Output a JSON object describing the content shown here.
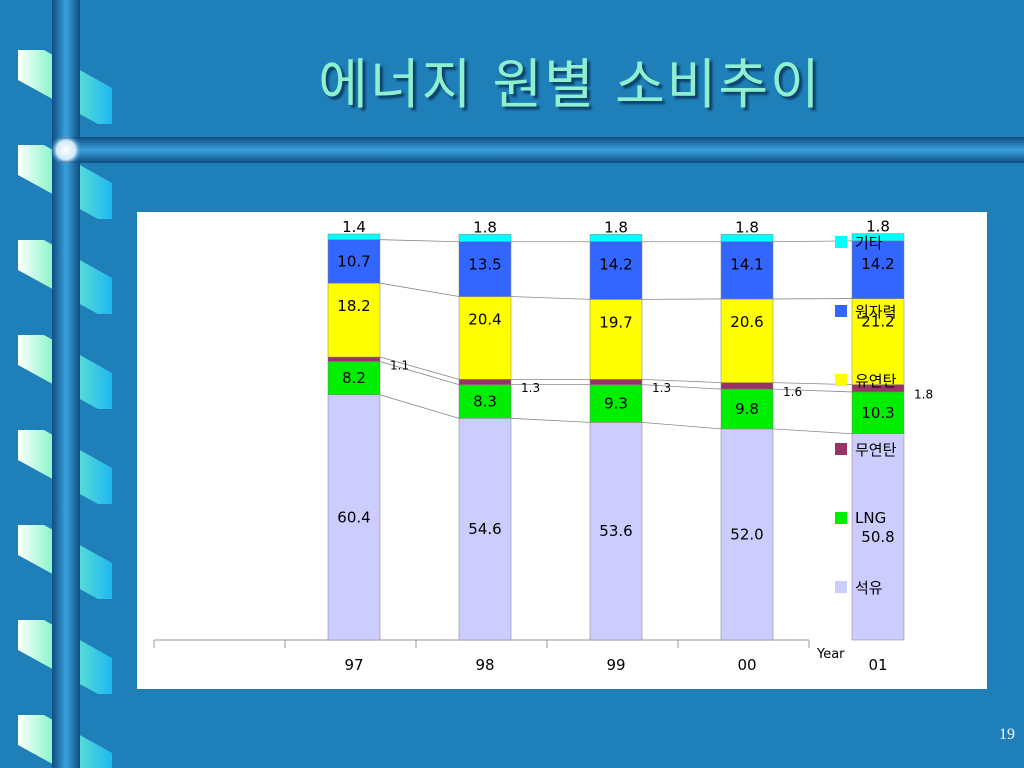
{
  "slide": {
    "title": "에너지 원별 소비추이",
    "page_number": "19",
    "background_color": "#1f7fb8"
  },
  "chart_data": {
    "type": "bar",
    "stacked": true,
    "categories": [
      "97",
      "98",
      "99",
      "00",
      "01"
    ],
    "xlabel": "Year",
    "ylabel": "",
    "ylim": [
      0,
      100
    ],
    "grid": false,
    "legend_position": "right",
    "series": [
      {
        "name": "석유",
        "color": "#ccccff",
        "values": [
          60.4,
          54.6,
          53.6,
          52.0,
          50.8
        ],
        "labels": [
          "60.4",
          "54.6",
          "53.6",
          "52.0",
          "50.8"
        ]
      },
      {
        "name": "LNG",
        "color": "#00ee00",
        "values": [
          8.2,
          8.3,
          9.3,
          9.8,
          10.3
        ],
        "labels": [
          "8.2",
          "8.3",
          "9.3",
          "9.8",
          "10.3"
        ]
      },
      {
        "name": "무연탄",
        "color": "#993366",
        "values": [
          1.1,
          1.3,
          1.3,
          1.6,
          1.8
        ],
        "labels": [
          "1.1",
          "1.3",
          "1.3",
          "1.6",
          "1.8"
        ]
      },
      {
        "name": "유연탄",
        "color": "#ffff00",
        "values": [
          18.2,
          20.4,
          19.7,
          20.6,
          21.2
        ],
        "labels": [
          "18.2",
          "20.4",
          "19.7",
          "20.6",
          "21.2"
        ]
      },
      {
        "name": "원자력",
        "color": "#3366ff",
        "values": [
          10.7,
          13.5,
          14.2,
          14.1,
          14.2
        ],
        "labels": [
          "10.7",
          "13.5",
          "14.2",
          "14.1",
          "14.2"
        ]
      },
      {
        "name": "기타",
        "color": "#00ffff",
        "values": [
          1.4,
          1.8,
          1.8,
          1.8,
          1.8
        ],
        "labels": [
          "1.4",
          "1.8",
          "1.8",
          "1.8",
          "1.8"
        ]
      }
    ],
    "legend_order": [
      "기타",
      "원자력",
      "유연탄",
      "무연탄",
      "LNG",
      "석유"
    ]
  }
}
